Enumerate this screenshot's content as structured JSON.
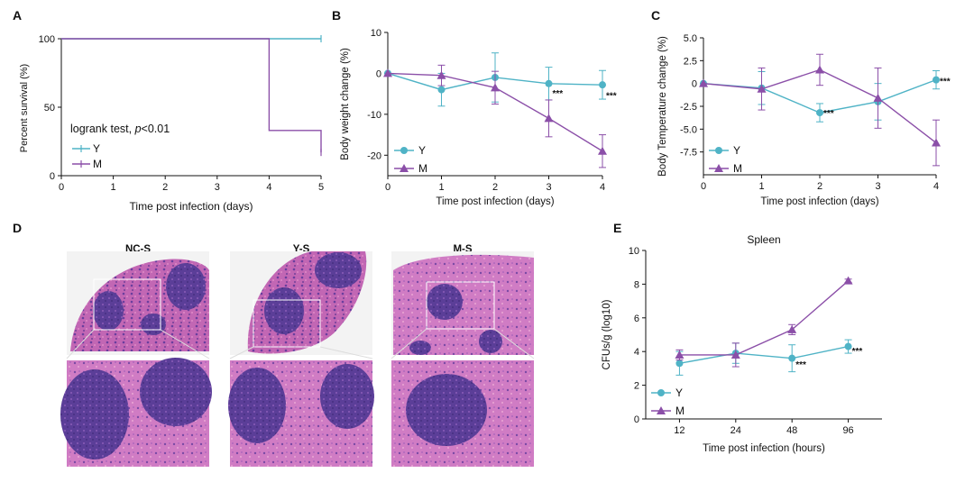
{
  "colors": {
    "Y": "#4fb3c6",
    "M": "#8b4fa8"
  },
  "panels": {
    "A": {
      "letter": "A"
    },
    "B": {
      "letter": "B"
    },
    "C": {
      "letter": "C"
    },
    "D": {
      "letter": "D"
    },
    "E": {
      "letter": "E"
    }
  },
  "histology": {
    "columns": [
      {
        "title": "NC-S"
      },
      {
        "title": "Y-S"
      },
      {
        "title": "M-S"
      }
    ]
  },
  "chart_data": [
    {
      "id": "A",
      "type": "line",
      "step": true,
      "xlabel": "Time post infection (days)",
      "ylabel": "Percent survival (%)",
      "xlim": [
        0,
        5
      ],
      "ylim": [
        0,
        100
      ],
      "xticks": [
        0,
        1,
        2,
        3,
        4,
        5
      ],
      "yticks": [
        0,
        50,
        100
      ],
      "annotation": {
        "prefix": "logrank test, ",
        "p_symbol": "p",
        "suffix": "<0.01"
      },
      "series": [
        {
          "name": "Y",
          "points": [
            [
              0,
              100
            ],
            [
              5,
              100
            ]
          ]
        },
        {
          "name": "M",
          "points": [
            [
              0,
              100
            ],
            [
              4,
              100
            ],
            [
              4,
              33
            ],
            [
              5,
              33
            ],
            [
              5,
              17
            ]
          ]
        }
      ]
    },
    {
      "id": "B",
      "type": "line",
      "xlabel": "Time post infection (days)",
      "ylabel": "Body weight change (%)",
      "xlim": [
        0,
        4
      ],
      "ylim": [
        -25,
        10
      ],
      "xticks": [
        0,
        1,
        2,
        3,
        4
      ],
      "yticks": [
        -20,
        -10,
        0,
        10
      ],
      "series": [
        {
          "name": "Y",
          "marker": "circle",
          "x": [
            0,
            1,
            2,
            3,
            4
          ],
          "y": [
            0,
            -4,
            -1,
            -2.5,
            -2.8
          ],
          "err": [
            0,
            4,
            6,
            4,
            3.5
          ]
        },
        {
          "name": "M",
          "marker": "triangle",
          "x": [
            0,
            1,
            2,
            3,
            4
          ],
          "y": [
            0,
            -0.5,
            -3.5,
            -11,
            -19
          ],
          "err": [
            0,
            2.5,
            4,
            4.5,
            4
          ]
        }
      ],
      "significance": [
        {
          "x": 3,
          "y": -5,
          "label": "***"
        },
        {
          "x": 4,
          "y": -5.5,
          "label": "***"
        }
      ]
    },
    {
      "id": "C",
      "type": "line",
      "xlabel": "Time post infection (days)",
      "ylabel": "Body Temperature change (%)",
      "xlim": [
        0,
        4
      ],
      "ylim": [
        -10,
        5
      ],
      "xticks": [
        0,
        1,
        2,
        3,
        4
      ],
      "yticks": [
        -7.5,
        -5.0,
        -2.5,
        0,
        2.5,
        5.0
      ],
      "ytick_labels": [
        "-7.5",
        "-5.0",
        "-2.5",
        "0",
        "2.5",
        "5.0"
      ],
      "series": [
        {
          "name": "Y",
          "marker": "circle",
          "x": [
            0,
            1,
            2,
            3,
            4
          ],
          "y": [
            0,
            -0.5,
            -3.2,
            -2.0,
            0.4
          ],
          "err": [
            0,
            1.8,
            1.0,
            2.0,
            1.0
          ]
        },
        {
          "name": "M",
          "marker": "triangle",
          "x": [
            0,
            1,
            2,
            3,
            4
          ],
          "y": [
            0,
            -0.6,
            1.5,
            -1.6,
            -6.5
          ],
          "err": [
            0,
            2.3,
            1.7,
            3.3,
            2.5
          ]
        }
      ],
      "significance": [
        {
          "x": 2,
          "y": -3.3,
          "label": "***"
        },
        {
          "x": 4,
          "y": 0.2,
          "label": "***"
        }
      ]
    },
    {
      "id": "E",
      "type": "line",
      "title": "Spleen",
      "xlabel": "Time post infection (hours)",
      "ylabel": "CFUs/g  (log10)",
      "categories": [
        "12",
        "24",
        "48",
        "96"
      ],
      "ylim": [
        0,
        10
      ],
      "yticks": [
        0,
        2,
        4,
        6,
        8,
        10
      ],
      "series": [
        {
          "name": "Y",
          "marker": "circle",
          "y": [
            3.3,
            3.9,
            3.6,
            4.3
          ],
          "err": [
            0.7,
            0.6,
            0.8,
            0.4
          ]
        },
        {
          "name": "M",
          "marker": "triangle",
          "y": [
            3.8,
            3.8,
            5.3,
            8.2
          ],
          "err": [
            0.3,
            0.7,
            0.3,
            0.1
          ]
        }
      ],
      "significance": [
        {
          "cat": 2,
          "y": 3.2,
          "label": "***"
        },
        {
          "cat": 3,
          "y": 4.0,
          "label": "***"
        }
      ]
    }
  ]
}
